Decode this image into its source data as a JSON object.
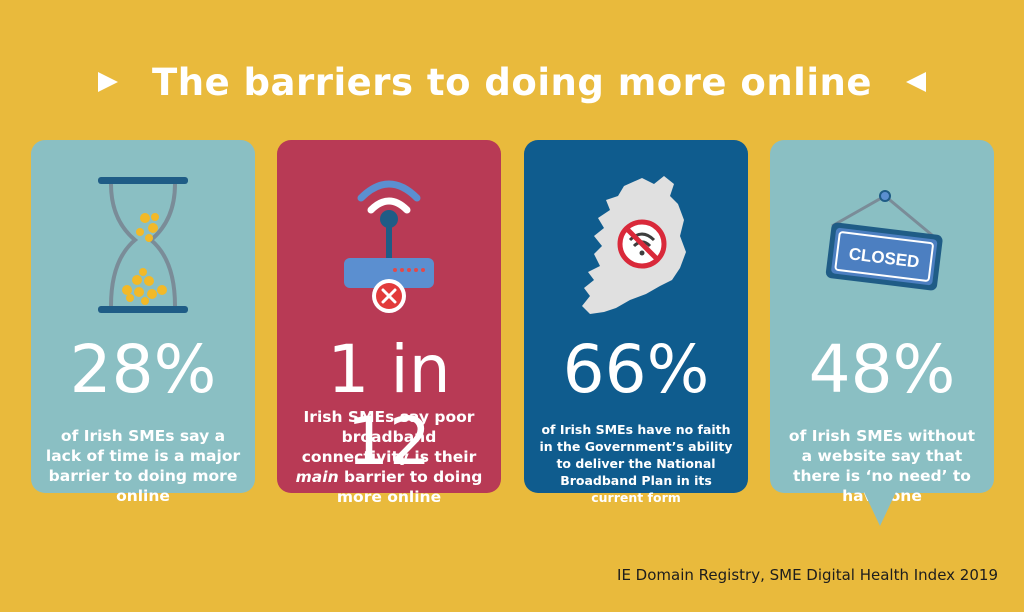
{
  "title": "The barriers to doing more online",
  "cards": [
    {
      "icon": "hourglass-icon",
      "stat": "28%",
      "description": "of Irish SMEs say a lack of time is a major barrier to doing more online"
    },
    {
      "icon": "router-error-icon",
      "stat": "1 in 12",
      "description_pre": "Irish SMEs say poor broadband connectivity is their ",
      "description_em": "main",
      "description_post": " barrier to doing more online"
    },
    {
      "icon": "ireland-no-wifi-icon",
      "stat": "66%",
      "description": "of Irish SMEs have no faith in the Government’s ability to deliver the National Broadband Plan in its current form"
    },
    {
      "icon": "closed-sign-icon",
      "sign_text": "CLOSED",
      "stat": "48%",
      "description": "of Irish SMEs without a website say that there is ‘no need’ to have one"
    }
  ],
  "source": "IE Domain Registry, SME Digital Health Index 2019",
  "colors": {
    "background": "#E9BA3C",
    "teal": "#8ABFC3",
    "red": "#B83A55",
    "blue": "#0F5C8E"
  }
}
